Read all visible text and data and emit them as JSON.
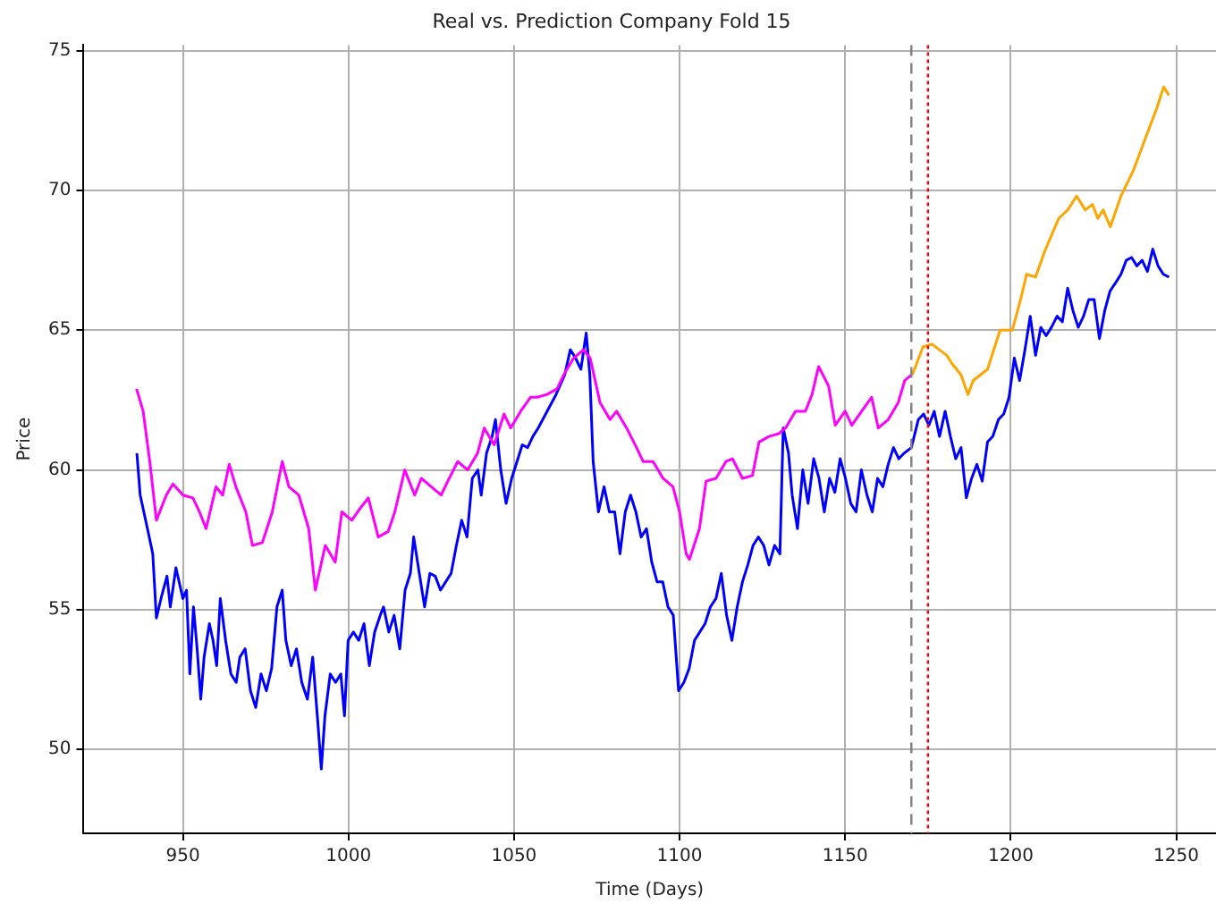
{
  "chart_data": {
    "type": "line",
    "title": "Real vs. Prediction Company Fold 15",
    "xlabel": "Time (Days)",
    "ylabel": "Price",
    "xlim": [
      920,
      1262
    ],
    "xticks": [
      950,
      1000,
      1050,
      1100,
      1150,
      1200,
      1250
    ],
    "ylim": [
      47,
      75.2
    ],
    "yticks": [
      50,
      55,
      60,
      65,
      70,
      75
    ],
    "grid": true,
    "legend": false,
    "marker": "none",
    "line_style": "solid",
    "series": [
      {
        "color": "#ff00ff",
        "x": [
          936,
          938,
          940,
          942,
          945,
          947,
          950,
          953,
          955,
          957,
          960,
          962,
          964,
          966,
          969,
          971,
          974,
          977,
          980,
          982,
          985,
          988,
          990,
          993,
          996,
          998,
          1001,
          1004,
          1006,
          1009,
          1012,
          1014,
          1017,
          1020,
          1022,
          1025,
          1028,
          1030,
          1033,
          1036,
          1039,
          1041,
          1044,
          1047,
          1049,
          1052,
          1055,
          1057,
          1060,
          1063,
          1065,
          1068,
          1071,
          1073,
          1076,
          1079,
          1081,
          1084,
          1087,
          1089,
          1092,
          1095,
          1098,
          1100,
          1102,
          1103,
          1106,
          1108,
          1111,
          1114,
          1116,
          1119,
          1122,
          1124,
          1127,
          1130,
          1132,
          1135,
          1138,
          1140,
          1142,
          1145,
          1147,
          1150,
          1152,
          1155,
          1158,
          1160,
          1163,
          1166,
          1168,
          1170
        ],
        "values": [
          62.9,
          62.1,
          60.3,
          58.2,
          59.1,
          59.5,
          59.1,
          59,
          58.5,
          57.9,
          59.4,
          59.1,
          60.2,
          59.4,
          58.5,
          57.3,
          57.4,
          58.5,
          60.3,
          59.4,
          59.1,
          57.9,
          55.7,
          57.3,
          56.7,
          58.5,
          58.2,
          58.7,
          59,
          57.6,
          57.8,
          58.5,
          60,
          59.1,
          59.7,
          59.4,
          59.1,
          59.6,
          60.3,
          60,
          60.6,
          61.5,
          60.9,
          62,
          61.5,
          62.1,
          62.6,
          62.6,
          62.7,
          62.9,
          63.4,
          64,
          64.3,
          64,
          62.4,
          61.8,
          62.1,
          61.5,
          60.8,
          60.3,
          60.3,
          59.7,
          59.4,
          58.5,
          57,
          56.8,
          57.9,
          59.6,
          59.7,
          60.3,
          60.4,
          59.7,
          59.8,
          61,
          61.2,
          61.3,
          61.5,
          62.1,
          62.1,
          62.7,
          63.7,
          63,
          61.6,
          62.1,
          61.6,
          62.1,
          62.6,
          61.5,
          61.8,
          62.4,
          63.2,
          63.4
        ]
      },
      {
        "color": "#0000ff",
        "x": [
          936.1,
          937.1,
          939.3,
          940.9,
          942,
          943.6,
          945.2,
          946.2,
          947.9,
          950,
          951.1,
          952.1,
          953.2,
          954.3,
          955.4,
          956.4,
          958,
          959.1,
          960.2,
          961.3,
          962.9,
          964.5,
          966.1,
          967.2,
          968.8,
          970.4,
          972,
          973.6,
          975.2,
          976.8,
          978.4,
          980,
          981.1,
          982.7,
          984.3,
          985.9,
          987.6,
          989.2,
          990.8,
          991.8,
          992.9,
          994.5,
          996.1,
          997.7,
          998.8,
          999.9,
          1001.5,
          1003.1,
          1004.7,
          1006.3,
          1007.9,
          1009.6,
          1010.6,
          1012.2,
          1013.8,
          1015.5,
          1017.1,
          1018.7,
          1019.7,
          1021.4,
          1023,
          1024.6,
          1026.2,
          1027.8,
          1029.4,
          1031,
          1032.6,
          1034.2,
          1035.8,
          1037.4,
          1039.1,
          1040.1,
          1041.7,
          1043.4,
          1044.4,
          1046,
          1047.6,
          1049.3,
          1050.9,
          1052.5,
          1054.1,
          1055.7,
          1057.3,
          1060,
          1062.7,
          1065.3,
          1067,
          1068.6,
          1070.2,
          1071.8,
          1072.9,
          1073.9,
          1075.5,
          1077.2,
          1078.8,
          1080.4,
          1082,
          1083.6,
          1085.2,
          1086.8,
          1088.4,
          1090,
          1091.6,
          1093.2,
          1094.9,
          1096.5,
          1098.1,
          1099.7,
          1101.3,
          1102.9,
          1104.5,
          1106.1,
          1107.7,
          1109.3,
          1111,
          1112.6,
          1114.2,
          1115.8,
          1117.4,
          1119,
          1120.6,
          1122.2,
          1123.8,
          1125.4,
          1127,
          1128.7,
          1130.3,
          1131.3,
          1132.9,
          1134,
          1135.6,
          1137.2,
          1138.8,
          1140.5,
          1142.1,
          1143.7,
          1145.3,
          1146.9,
          1148.5,
          1150.1,
          1151.7,
          1153.3,
          1154.9,
          1156.6,
          1158.2,
          1159.8,
          1161.4,
          1163,
          1164.6,
          1166.2,
          1167.8,
          1170,
          1172.1,
          1173.7,
          1175.3,
          1176.9,
          1178.5,
          1180.2,
          1181.8,
          1183.4,
          1185,
          1186.6,
          1188.2,
          1189.8,
          1191.4,
          1193,
          1194.6,
          1196.3,
          1197.9,
          1199.5,
          1201.1,
          1202.7,
          1204.3,
          1205.9,
          1207.5,
          1209.1,
          1210.7,
          1212.3,
          1214,
          1215.6,
          1217.2,
          1218.8,
          1220.4,
          1222,
          1223.6,
          1225.2,
          1226.8,
          1228.4,
          1230,
          1231.7,
          1233.3,
          1234.9,
          1236.5,
          1238.1,
          1239.7,
          1241.3,
          1242.9,
          1244.5,
          1246.1,
          1247.8
        ],
        "values": [
          60.6,
          59.1,
          57.9,
          57,
          54.7,
          55.5,
          56.2,
          55.1,
          56.5,
          55.4,
          55.7,
          52.7,
          55.1,
          53.6,
          51.8,
          53.3,
          54.5,
          53.9,
          53,
          55.4,
          53.9,
          52.7,
          52.4,
          53.3,
          53.6,
          52.1,
          51.5,
          52.7,
          52.1,
          52.9,
          55.1,
          55.7,
          53.9,
          53,
          53.6,
          52.4,
          51.8,
          53.3,
          50.9,
          49.3,
          51.2,
          52.7,
          52.4,
          52.7,
          51.2,
          53.9,
          54.2,
          53.9,
          54.5,
          53,
          54.2,
          54.8,
          55.1,
          54.2,
          54.8,
          53.6,
          55.7,
          56.3,
          57.6,
          56.3,
          55.1,
          56.3,
          56.2,
          55.7,
          56,
          56.3,
          57.3,
          58.2,
          57.6,
          59.7,
          60,
          59.1,
          60.6,
          61.2,
          61.8,
          60,
          58.8,
          59.7,
          60.3,
          60.9,
          60.8,
          61.2,
          61.5,
          62.1,
          62.7,
          63.4,
          64.3,
          64,
          63.6,
          64.9,
          63.4,
          60.3,
          58.5,
          59.4,
          58.5,
          58.5,
          57,
          58.5,
          59.1,
          58.5,
          57.6,
          57.9,
          56.7,
          56,
          56,
          55.1,
          54.8,
          52.1,
          52.4,
          52.9,
          53.9,
          54.2,
          54.5,
          55.1,
          55.4,
          56.3,
          54.8,
          53.9,
          55.1,
          56,
          56.6,
          57.3,
          57.6,
          57.3,
          56.6,
          57.3,
          57,
          61.5,
          60.6,
          59.1,
          57.9,
          60,
          58.8,
          60.4,
          59.7,
          58.5,
          59.7,
          59.2,
          60.4,
          59.7,
          58.8,
          58.5,
          60,
          59.1,
          58.5,
          59.7,
          59.4,
          60.2,
          60.8,
          60.4,
          60.6,
          60.8,
          61.8,
          62,
          61.6,
          62.1,
          61.2,
          62.1,
          61.2,
          60.4,
          60.8,
          59,
          59.7,
          60.2,
          59.6,
          61,
          61.2,
          61.8,
          62,
          62.6,
          64,
          63.2,
          64.3,
          65.5,
          64.1,
          65.1,
          64.8,
          65.1,
          65.5,
          65.3,
          66.5,
          65.7,
          65.1,
          65.5,
          66.1,
          66.1,
          64.7,
          65.7,
          66.4,
          66.7,
          67,
          67.5,
          67.6,
          67.3,
          67.5,
          67.1,
          67.9,
          67.3,
          67,
          66.9
        ]
      },
      {
        "color": "#ffa500",
        "x": [
          1170.3,
          1173.5,
          1176.2,
          1180.7,
          1182.3,
          1185,
          1187.1,
          1188.7,
          1193,
          1196.8,
          1200.5,
          1203.2,
          1204.8,
          1207.5,
          1210.2,
          1214.5,
          1217.2,
          1219.9,
          1222.5,
          1224.7,
          1226.3,
          1227.9,
          1230.1,
          1233.3,
          1237,
          1240.8,
          1244,
          1246.2,
          1247.8
        ],
        "values": [
          63.4,
          64.4,
          64.5,
          64.1,
          63.8,
          63.4,
          62.7,
          63.2,
          63.6,
          65,
          65,
          66.2,
          67,
          66.9,
          67.8,
          69,
          69.3,
          69.8,
          69.3,
          69.5,
          69,
          69.3,
          68.7,
          69.8,
          70.7,
          71.9,
          72.9,
          73.7,
          73.4
        ]
      }
    ],
    "ref_lines": [
      {
        "axis": "x",
        "value": 1170,
        "color": "#808080",
        "line_style": "dashed"
      },
      {
        "axis": "x",
        "value": 1175,
        "color": "#ff0000",
        "line_style": "dotted"
      }
    ]
  }
}
